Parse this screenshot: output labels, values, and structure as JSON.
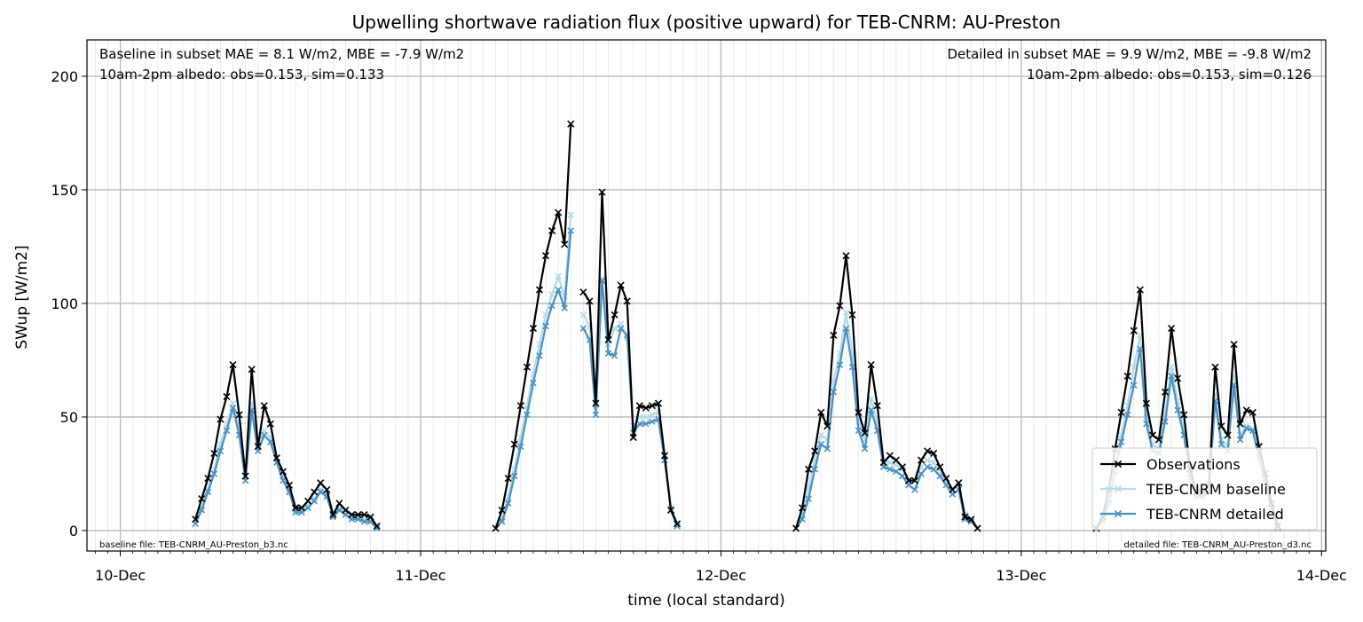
{
  "chart_data": {
    "type": "line",
    "title": "Upwelling shortwave radiation flux (positive upward) for TEB-CNRM: AU-Preston",
    "xlabel": "time (local standard)",
    "ylabel": "SWup [W/m2]",
    "xlim": [
      "2009-12-09T21:20",
      "2009-12-14T00:20"
    ],
    "ylim": [
      -9,
      216
    ],
    "x_ticks": [
      "10-Dec",
      "11-Dec",
      "12-Dec",
      "13-Dec",
      "14-Dec"
    ],
    "y_ticks": [
      "0",
      "50",
      "100",
      "150",
      "200"
    ],
    "grid": true,
    "legend_position": "lower-right",
    "annotations": {
      "top_left_line1": "Baseline in subset MAE = 8.1 W/m2, MBE = -7.9 W/m2",
      "top_left_line2": "10am-2pm albedo: obs=0.153, sim=0.133",
      "top_right_line1": "Detailed in subset MAE = 9.9 W/m2, MBE = -9.8 W/m2",
      "top_right_line2": "10am-2pm albedo: obs=0.153, sim=0.126",
      "bottom_left": "baseline file: TEB-CNRM_AU-Preston_b3.nc",
      "bottom_right": "detailed file: TEB-CNRM_AU-Preston_d3.nc"
    },
    "colors": {
      "obs": "#000000",
      "baseline": "#b3dcea",
      "detailed": "#4a90c2"
    },
    "series": [
      {
        "name": "Observations",
        "days": [
          {
            "start": "2009-12-10T06:00",
            "step_minutes": 30,
            "values": [
              5,
              14,
              23,
              34,
              49,
              59,
              73,
              51,
              24,
              71,
              37,
              55,
              47,
              32,
              26,
              20,
              10,
              10,
              13,
              17,
              21,
              18,
              7,
              12,
              9,
              7,
              7,
              7,
              6,
              2
            ]
          },
          {
            "start": "2009-12-11T06:00",
            "step_minutes": 30,
            "values": [
              1,
              9,
              23,
              38,
              55,
              72,
              89,
              106,
              121,
              132,
              140,
              126,
              179,
              null,
              105,
              101,
              56,
              149,
              84,
              95,
              108,
              101,
              41,
              55,
              54,
              55,
              56,
              33,
              9,
              3
            ]
          },
          {
            "start": "2009-12-12T06:00",
            "step_minutes": 30,
            "values": [
              1,
              10,
              27,
              35,
              52,
              46,
              86,
              99,
              121,
              95,
              52,
              43,
              73,
              55,
              30,
              33,
              31,
              28,
              22,
              22,
              31,
              35,
              34,
              28,
              23,
              18,
              21,
              6,
              5,
              1
            ]
          },
          {
            "start": "2009-12-13T06:00",
            "step_minutes": 30,
            "values": [
              1,
              6,
              18,
              36,
              52,
              68,
              88,
              106,
              56,
              42,
              40,
              61,
              89,
              67,
              51,
              27,
              17,
              17,
              20,
              72,
              46,
              42,
              82,
              47,
              53,
              52,
              37,
              25,
              12,
              2
            ]
          }
        ]
      },
      {
        "name": "TEB-CNRM baseline",
        "days": [
          {
            "start": "2009-12-10T06:00",
            "step_minutes": 30,
            "values": [
              3,
              10,
              18,
              27,
              38,
              47,
              56,
              46,
              24,
              56,
              38,
              44,
              41,
              32,
              24,
              18,
              9,
              9,
              11,
              14,
              18,
              16,
              7,
              10,
              8,
              6,
              6,
              5,
              5,
              2
            ]
          },
          {
            "start": "2009-12-11T06:00",
            "step_minutes": 30,
            "values": [
              1,
              5,
              15,
              27,
              41,
              55,
              69,
              82,
              95,
              104,
              112,
              103,
              139,
              null,
              95,
              90,
              55,
              111,
              82,
              89,
              91,
              85,
              46,
              50,
              50,
              51,
              52,
              33,
              10,
              3
            ]
          },
          {
            "start": "2009-12-12T06:00",
            "step_minutes": 30,
            "values": [
              1,
              7,
              19,
              31,
              42,
              40,
              66,
              78,
              96,
              78,
              48,
              40,
              58,
              47,
              30,
              30,
              29,
              27,
              22,
              22,
              28,
              31,
              30,
              26,
              22,
              18,
              20,
              7,
              5,
              1
            ]
          },
          {
            "start": "2009-12-13T06:00",
            "step_minutes": 30,
            "values": [
              1,
              5,
              14,
              29,
              42,
              55,
              72,
              86,
              50,
              38,
              36,
              52,
              72,
              57,
              45,
              25,
              16,
              16,
              18,
              60,
              40,
              37,
              68,
              42,
              46,
              45,
              34,
              23,
              11,
              2
            ]
          }
        ]
      },
      {
        "name": "TEB-CNRM detailed",
        "days": [
          {
            "start": "2009-12-10T06:00",
            "step_minutes": 30,
            "values": [
              3,
              9,
              17,
              25,
              35,
              44,
              54,
              42,
              22,
              53,
              35,
              42,
              39,
              30,
              22,
              17,
              8,
              8,
              10,
              13,
              17,
              15,
              6,
              9,
              7,
              5,
              5,
              4,
              4,
              1
            ]
          },
          {
            "start": "2009-12-11T06:00",
            "step_minutes": 30,
            "values": [
              1,
              4,
              12,
              24,
              37,
              51,
              65,
              77,
              90,
              99,
              106,
              98,
              132,
              null,
              89,
              84,
              51,
              110,
              78,
              77,
              89,
              86,
              43,
              47,
              47,
              48,
              49,
              31,
              9,
              2
            ]
          },
          {
            "start": "2009-12-12T06:00",
            "step_minutes": 30,
            "values": [
              1,
              5,
              14,
              27,
              38,
              36,
              61,
              73,
              89,
              72,
              44,
              36,
              53,
              44,
              28,
              27,
              26,
              24,
              20,
              18,
              25,
              28,
              27,
              24,
              20,
              16,
              18,
              5,
              4,
              1
            ]
          },
          {
            "start": "2009-12-13T06:00",
            "step_minutes": 30,
            "values": [
              1,
              4,
              12,
              26,
              39,
              51,
              64,
              80,
              47,
              35,
              34,
              48,
              68,
              53,
              42,
              23,
              15,
              15,
              17,
              57,
              38,
              35,
              64,
              40,
              45,
              44,
              32,
              21,
              10,
              1
            ]
          }
        ]
      }
    ]
  }
}
